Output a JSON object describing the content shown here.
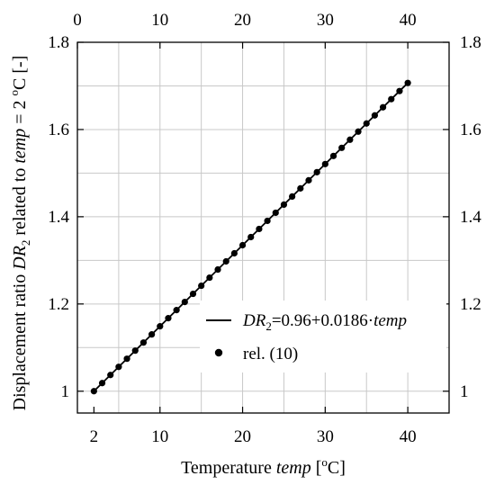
{
  "chart_data": {
    "type": "line",
    "xlabel": {
      "prefix": "Temperature ",
      "italic": "temp",
      "suffix": " [",
      "sup": "o",
      "end": "C]"
    },
    "ylabel": {
      "prefix": "Displacement ratio ",
      "italic": "DR",
      "sub": "2",
      "middle": " related to ",
      "italic2": "temp",
      "eq": " = 2 ",
      "sup": "o",
      "end": "C [-]"
    },
    "xlim": [
      0,
      45
    ],
    "ylim": [
      0.95,
      1.8
    ],
    "x_ticks_bottom": [
      2,
      10,
      20,
      30,
      40
    ],
    "x_ticks_top": [
      0,
      10,
      20,
      30,
      40
    ],
    "y_ticks": [
      1,
      1.2,
      1.4,
      1.6,
      1.8
    ],
    "y_tick_labels": [
      "1",
      "1.2",
      "1.4",
      "1.6",
      "1.8"
    ],
    "grid": true,
    "legend_position": "bottom-right",
    "series": [
      {
        "name": "DR2=0.96+0.0186·temp",
        "legend": {
          "italic": "DR",
          "sub": "2",
          "formula": "=0.96+0.0186·",
          "italic2": "temp"
        },
        "style": "line",
        "x": [
          2,
          40
        ],
        "y": [
          1.0,
          1.7068
        ]
      },
      {
        "name": "rel. (10)",
        "legend": {
          "text": "rel. (10)"
        },
        "style": "markers",
        "x": [
          2,
          3,
          4,
          5,
          6,
          7,
          8,
          9,
          10,
          11,
          12,
          13,
          14,
          15,
          16,
          17,
          18,
          19,
          20,
          21,
          22,
          23,
          24,
          25,
          26,
          27,
          28,
          29,
          30,
          31,
          32,
          33,
          34,
          35,
          36,
          37,
          38,
          39,
          40
        ],
        "y": [
          1.0,
          1.0186,
          1.0372,
          1.0558,
          1.0744,
          1.093,
          1.1116,
          1.1302,
          1.1488,
          1.1674,
          1.186,
          1.2046,
          1.2232,
          1.2418,
          1.2604,
          1.279,
          1.2976,
          1.3162,
          1.3348,
          1.3534,
          1.372,
          1.3906,
          1.4092,
          1.4278,
          1.4464,
          1.465,
          1.4836,
          1.5022,
          1.5208,
          1.5394,
          1.558,
          1.5766,
          1.5952,
          1.6138,
          1.6324,
          1.651,
          1.6696,
          1.6882,
          1.7068
        ]
      }
    ]
  }
}
